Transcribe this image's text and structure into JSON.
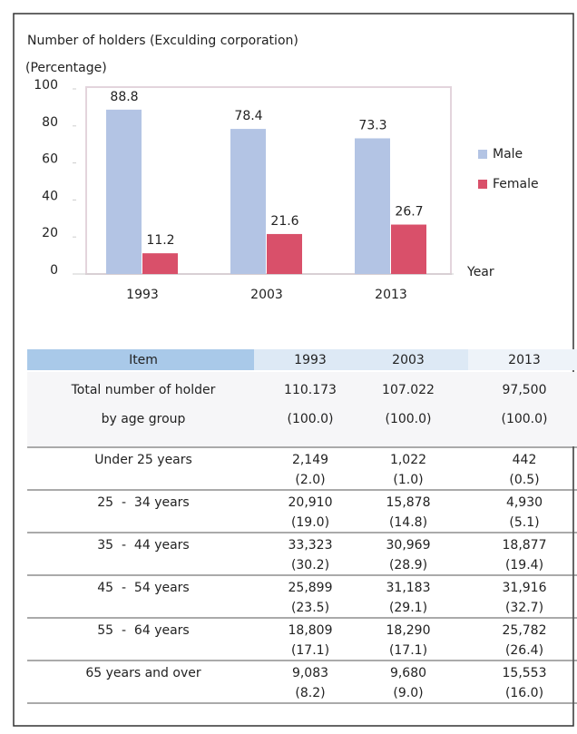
{
  "chart_data": {
    "type": "bar",
    "title": "Number of holders (Exculding corporation)",
    "y_label": "(Percentage)",
    "x_label": "Year",
    "categories": [
      "1993",
      "2003",
      "2013"
    ],
    "series": [
      {
        "name": "Male",
        "color": "#b3c4e4",
        "values": [
          88.8,
          78.4,
          73.3
        ]
      },
      {
        "name": "Female",
        "color": "#d9506a",
        "values": [
          11.2,
          21.6,
          26.7
        ]
      }
    ],
    "ylim": [
      0,
      100
    ],
    "yticks": [
      0,
      20,
      40,
      60,
      80,
      100
    ],
    "legend": "right"
  },
  "table": {
    "header": [
      "Item",
      "1993",
      "2003",
      "2013"
    ],
    "rows": [
      {
        "label": [
          "Total number of holder",
          "by age group"
        ],
        "cells": [
          [
            "110.173",
            "(100.0)"
          ],
          [
            "107.022",
            "(100.0)"
          ],
          [
            "97,500",
            "(100.0)"
          ]
        ]
      },
      {
        "label": [
          "Under 25 years"
        ],
        "cells": [
          [
            "2,149",
            "(2.0)"
          ],
          [
            "1,022",
            "(1.0)"
          ],
          [
            "442",
            "(0.5)"
          ]
        ]
      },
      {
        "label": [
          "25  -  34 years"
        ],
        "cells": [
          [
            "20,910",
            "(19.0)"
          ],
          [
            "15,878",
            "(14.8)"
          ],
          [
            "4,930",
            "(5.1)"
          ]
        ]
      },
      {
        "label": [
          "35  -  44 years"
        ],
        "cells": [
          [
            "33,323",
            "(30.2)"
          ],
          [
            "30,969",
            "(28.9)"
          ],
          [
            "18,877",
            "(19.4)"
          ]
        ]
      },
      {
        "label": [
          "45  -  54 years"
        ],
        "cells": [
          [
            "25,899",
            "(23.5)"
          ],
          [
            "31,183",
            "(29.1)"
          ],
          [
            "31,916",
            "(32.7)"
          ]
        ]
      },
      {
        "label": [
          "55  -  64 years"
        ],
        "cells": [
          [
            "18,809",
            "(17.1)"
          ],
          [
            "18,290",
            "(17.1)"
          ],
          [
            "25,782",
            "(26.4)"
          ]
        ]
      },
      {
        "label": [
          "65 years and over"
        ],
        "cells": [
          [
            "9,083",
            "(8.2)"
          ],
          [
            "9,680",
            "(9.0)"
          ],
          [
            "15,553",
            "(16.0)"
          ]
        ]
      }
    ]
  }
}
